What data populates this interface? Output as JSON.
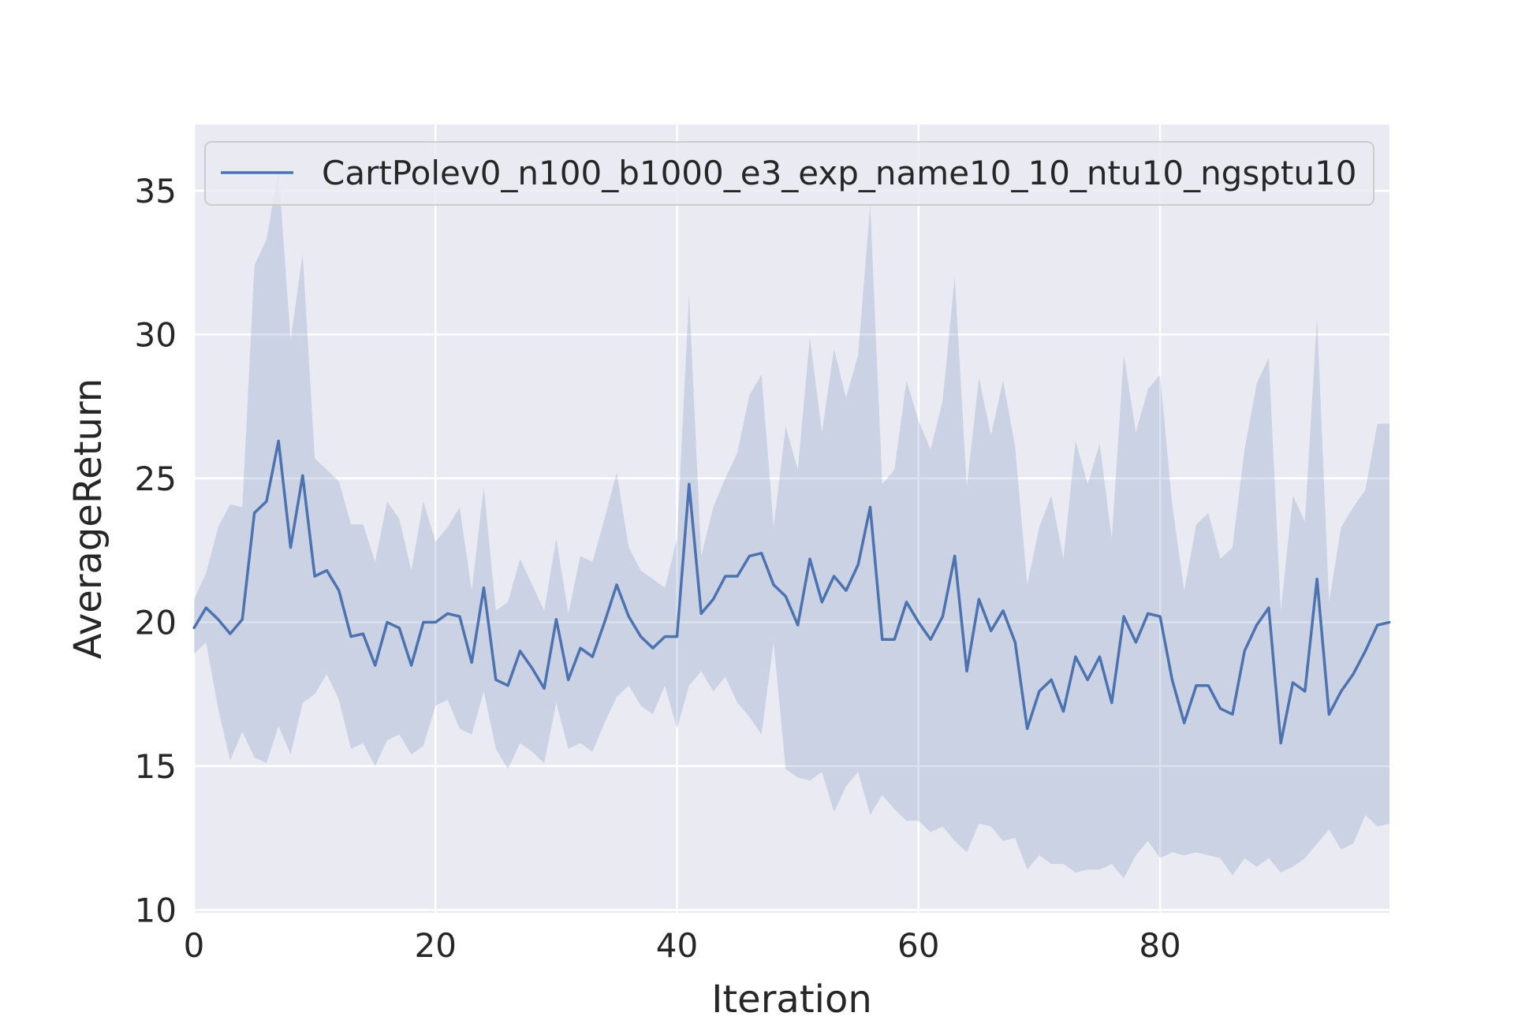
{
  "chart_data": {
    "type": "line",
    "xlabel": "Iteration",
    "ylabel": "AverageReturn",
    "xlim": [
      0,
      99
    ],
    "ylim": [
      9.9,
      37.3
    ],
    "xticks": [
      0,
      20,
      40,
      60,
      80
    ],
    "yticks": [
      10,
      15,
      20,
      25,
      30,
      35
    ],
    "grid": true,
    "legend_position": "top-left",
    "colors": {
      "background": "#eaeaf2",
      "grid": "#ffffff",
      "line": "#4c72b0",
      "band": "#4c72b0"
    },
    "series": [
      {
        "name": "CartPolev0_n100_b1000_e3_exp_name10_10_ntu10_ngsptu10",
        "x": [
          0,
          1,
          2,
          3,
          4,
          5,
          6,
          7,
          8,
          9,
          10,
          11,
          12,
          13,
          14,
          15,
          16,
          17,
          18,
          19,
          20,
          21,
          22,
          23,
          24,
          25,
          26,
          27,
          28,
          29,
          30,
          31,
          32,
          33,
          34,
          35,
          36,
          37,
          38,
          39,
          40,
          41,
          42,
          43,
          44,
          45,
          46,
          47,
          48,
          49,
          50,
          51,
          52,
          53,
          54,
          55,
          56,
          57,
          58,
          59,
          60,
          61,
          62,
          63,
          64,
          65,
          66,
          67,
          68,
          69,
          70,
          71,
          72,
          73,
          74,
          75,
          76,
          77,
          78,
          79,
          80,
          81,
          82,
          83,
          84,
          85,
          86,
          87,
          88,
          89,
          90,
          91,
          92,
          93,
          94,
          95,
          96,
          97,
          98,
          99
        ],
        "mean": [
          19.8,
          20.5,
          20.1,
          19.6,
          20.1,
          23.8,
          24.2,
          26.3,
          22.6,
          25.1,
          21.6,
          21.8,
          21.1,
          19.5,
          19.6,
          18.5,
          20.0,
          19.8,
          18.5,
          20.0,
          20.0,
          20.3,
          20.2,
          18.6,
          21.2,
          18.0,
          17.8,
          19.0,
          18.4,
          17.7,
          20.1,
          18.0,
          19.1,
          18.8,
          20.0,
          21.3,
          20.2,
          19.5,
          19.1,
          19.5,
          19.5,
          24.8,
          20.3,
          20.8,
          21.6,
          21.6,
          22.3,
          22.4,
          21.3,
          20.9,
          19.9,
          22.2,
          20.7,
          21.6,
          21.1,
          22.0,
          24.0,
          19.4,
          19.4,
          20.7,
          20.0,
          19.4,
          20.2,
          22.3,
          18.3,
          20.8,
          19.7,
          20.4,
          19.3,
          16.3,
          17.6,
          18.0,
          16.9,
          18.8,
          18.0,
          18.8,
          17.2,
          20.2,
          19.3,
          20.3,
          20.2,
          18.0,
          16.5,
          17.8,
          17.8,
          17.0,
          16.8,
          19.0,
          19.9,
          20.5,
          15.8,
          17.9,
          17.6,
          21.5,
          16.8,
          17.6,
          18.2,
          19.0,
          19.9,
          20.0
        ],
        "lower": [
          18.9,
          19.3,
          17.0,
          15.2,
          16.2,
          15.3,
          15.1,
          16.4,
          15.4,
          17.2,
          17.5,
          18.2,
          17.3,
          15.6,
          15.8,
          15.0,
          15.9,
          16.1,
          15.4,
          15.7,
          17.1,
          17.3,
          16.3,
          16.1,
          17.6,
          15.6,
          14.9,
          15.8,
          15.5,
          15.1,
          17.2,
          15.6,
          15.8,
          15.5,
          16.5,
          17.4,
          17.8,
          17.1,
          16.8,
          17.8,
          16.3,
          17.8,
          18.3,
          17.6,
          18.1,
          17.2,
          16.7,
          16.1,
          19.3,
          14.9,
          14.6,
          14.5,
          14.8,
          13.4,
          14.3,
          14.8,
          13.3,
          14.0,
          13.5,
          13.1,
          13.1,
          12.7,
          12.9,
          12.4,
          12.0,
          13.0,
          12.9,
          12.4,
          12.5,
          11.4,
          11.9,
          11.6,
          11.6,
          11.3,
          11.4,
          11.4,
          11.6,
          11.1,
          11.9,
          12.4,
          11.8,
          12.0,
          11.9,
          12.0,
          11.9,
          11.8,
          11.2,
          11.8,
          11.5,
          11.8,
          11.3,
          11.5,
          11.8,
          12.3,
          12.8,
          12.1,
          12.3,
          13.3,
          12.9,
          13.0
        ],
        "upper": [
          20.8,
          21.7,
          23.3,
          24.1,
          24.0,
          32.4,
          33.3,
          35.7,
          29.8,
          32.8,
          25.7,
          25.3,
          24.9,
          23.4,
          23.4,
          22.1,
          24.2,
          23.6,
          21.8,
          24.2,
          22.8,
          23.3,
          24.0,
          21.1,
          24.7,
          20.4,
          20.7,
          22.2,
          21.3,
          20.4,
          22.9,
          20.3,
          22.3,
          22.1,
          23.6,
          25.2,
          22.6,
          21.8,
          21.5,
          21.2,
          22.9,
          31.4,
          22.3,
          24.0,
          25.0,
          25.9,
          27.9,
          28.6,
          23.3,
          26.8,
          25.3,
          29.9,
          26.6,
          29.5,
          27.8,
          29.3,
          34.5,
          24.8,
          25.3,
          28.4,
          27.0,
          26.0,
          27.7,
          32.0,
          24.7,
          28.5,
          26.5,
          28.4,
          26.1,
          21.3,
          23.3,
          24.4,
          22.2,
          26.3,
          24.8,
          26.2,
          22.9,
          29.3,
          26.6,
          28.1,
          28.6,
          24.1,
          21.1,
          23.4,
          23.8,
          22.2,
          22.6,
          26.0,
          28.3,
          29.2,
          20.4,
          24.4,
          23.5,
          30.6,
          20.7,
          23.3,
          24.0,
          24.6,
          26.9,
          26.9
        ]
      }
    ]
  }
}
